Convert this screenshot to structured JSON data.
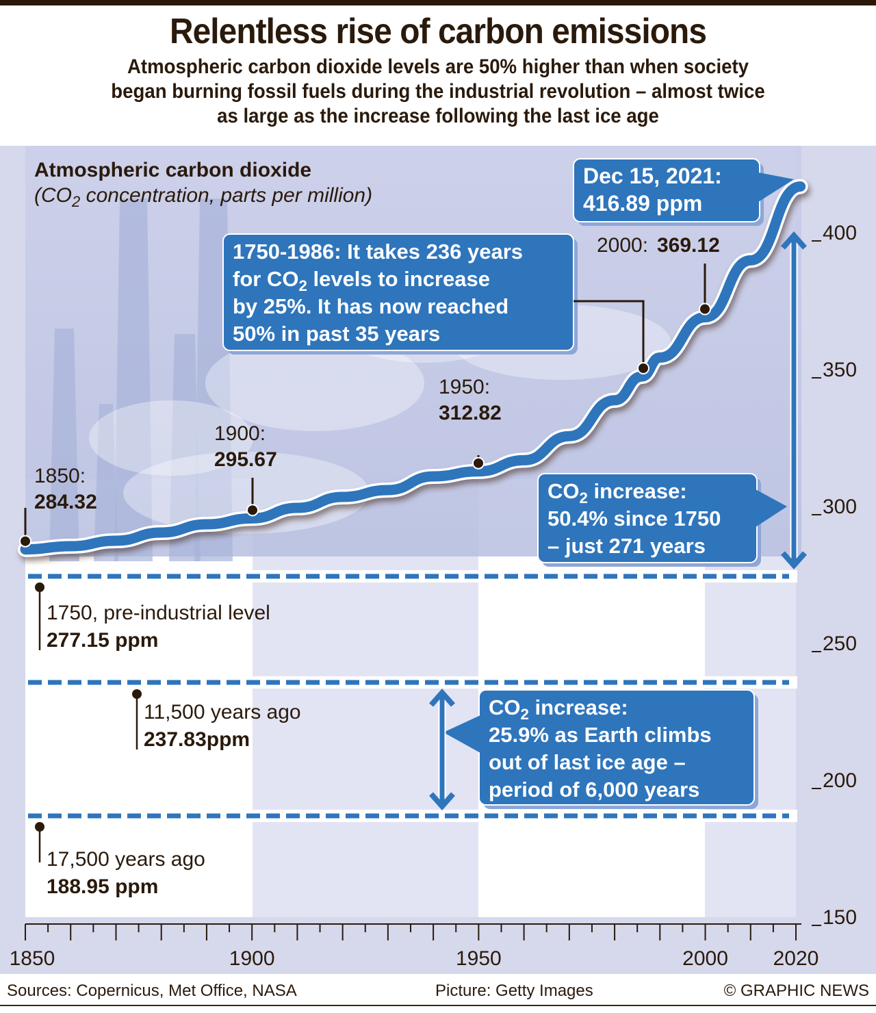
{
  "header": {
    "title": "Relentless rise of carbon emissions",
    "subtitle_lines": [
      "Atmospheric carbon dioxide levels are 50% higher than when society",
      "began burning fossil fuels during the industrial revolution – almost twice",
      "as large as the increase following the last ice age"
    ]
  },
  "chart_data": {
    "type": "line",
    "title": "Atmospheric carbon dioxide",
    "subtitle": "(CO2 concentration, parts per million)",
    "xlabel": "",
    "ylabel": "CO2 ppm",
    "xlim": [
      1850,
      2021
    ],
    "ylim": [
      150,
      420
    ],
    "x_ticks": [
      1850,
      1900,
      1950,
      2000,
      2020
    ],
    "y_ticks": [
      150,
      200,
      250,
      300,
      350,
      400
    ],
    "series": [
      {
        "name": "Atmospheric CO2",
        "color": "#2e75bc",
        "x": [
          1850,
          1860,
          1870,
          1880,
          1890,
          1900,
          1910,
          1920,
          1930,
          1940,
          1950,
          1960,
          1970,
          1980,
          1986,
          1990,
          2000,
          2010,
          2021
        ],
        "values": [
          284.32,
          285.5,
          287.5,
          290.5,
          293.5,
          295.67,
          299.5,
          303.5,
          306.0,
          311.0,
          312.82,
          316.9,
          325.7,
          338.8,
          347.5,
          354.4,
          369.12,
          389.9,
          416.89
        ]
      }
    ],
    "annotations": [
      {
        "label": "1850:",
        "value_text": "284.32",
        "x": 1850,
        "y": 284.32
      },
      {
        "label": "1900:",
        "value_text": "295.67",
        "x": 1900,
        "y": 295.67
      },
      {
        "label": "1950:",
        "value_text": "312.82",
        "x": 1950,
        "y": 312.82
      },
      {
        "label": "2000:",
        "value_text": "369.12",
        "x": 2000,
        "y": 369.12
      }
    ],
    "reference_levels": [
      {
        "label": "1750, pre-industrial level",
        "value_text": "277.15",
        "unit": "ppm",
        "value": 277.15
      },
      {
        "label": "11,500 years ago",
        "value_text": "237.83",
        "unit": "ppm",
        "value": 237.83
      },
      {
        "label": "17,500 years ago",
        "value_text": "188.95",
        "unit": "ppm",
        "value": 188.95
      }
    ],
    "callouts": {
      "latest": {
        "line1": "Dec 15, 2021:",
        "value": "416.89",
        "unit": "ppm"
      },
      "industrial": {
        "lines": [
          "1750-1986: It takes 236 years",
          "for CO|2| levels to increase",
          "by 25%. It has now reached",
          "50% in past 35 years"
        ]
      },
      "since_1750": {
        "lines": [
          "CO|2| increase:",
          "50.4% since 1750",
          "– just 271 years"
        ]
      },
      "ice_age": {
        "lines": [
          "CO|2| increase:",
          "25.9% as Earth climbs",
          "out of last ice age –",
          "period of 6,000 years"
        ]
      }
    },
    "grid": false,
    "legend": "none"
  },
  "footer": {
    "sources": "Sources: Copernicus, Met Office, NASA",
    "picture": "Picture: Getty Images",
    "credit": "© GRAPHIC NEWS"
  },
  "colors": {
    "accent_blue": "#2e75bc",
    "text_dark": "#2a1a0c",
    "panel_bg": "#d6d8ec",
    "band_light": "#e3e4f3"
  }
}
